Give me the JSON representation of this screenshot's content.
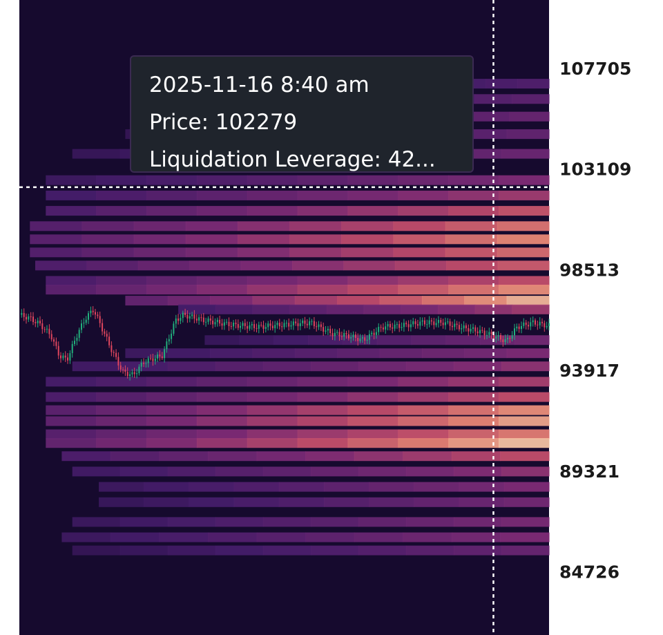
{
  "colors": {
    "background": "#160a2e",
    "page": "#ffffff",
    "candle_up": "#22b07d",
    "candle_down": "#e0465e",
    "crosshair": "#ffffff",
    "tooltip_bg": "#1f242c"
  },
  "tooltip": {
    "datetime": "2025-11-16 8:40 am",
    "price_line": "Price: 102279",
    "leverage_line": "Liquidation Leverage: 42..."
  },
  "chart_data": {
    "type": "heatmap",
    "title": "",
    "xlabel": "",
    "ylabel": "",
    "y_ticks": [
      107705,
      103109,
      98513,
      93917,
      89321,
      84726
    ],
    "y_tick_labels": [
      "107705",
      "103109",
      "98513",
      "93917",
      "89321",
      "84726"
    ],
    "ylim": [
      81840,
      110820
    ],
    "grid": false,
    "legend": "none",
    "crosshair": {
      "price": 102279,
      "time_fraction": 0.895
    },
    "price_path": [
      [
        0.0,
        96450
      ],
      [
        0.02,
        96300
      ],
      [
        0.04,
        96000
      ],
      [
        0.06,
        95500
      ],
      [
        0.075,
        94600
      ],
      [
        0.09,
        94400
      ],
      [
        0.11,
        95600
      ],
      [
        0.125,
        96300
      ],
      [
        0.14,
        96700
      ],
      [
        0.155,
        95900
      ],
      [
        0.175,
        94800
      ],
      [
        0.195,
        93850
      ],
      [
        0.215,
        93700
      ],
      [
        0.235,
        94300
      ],
      [
        0.27,
        94600
      ],
      [
        0.295,
        96200
      ],
      [
        0.31,
        96450
      ],
      [
        0.35,
        96200
      ],
      [
        0.4,
        96000
      ],
      [
        0.45,
        95900
      ],
      [
        0.5,
        96000
      ],
      [
        0.55,
        96100
      ],
      [
        0.59,
        95600
      ],
      [
        0.62,
        95500
      ],
      [
        0.65,
        95300
      ],
      [
        0.685,
        95900
      ],
      [
        0.72,
        95950
      ],
      [
        0.76,
        96100
      ],
      [
        0.8,
        96100
      ],
      [
        0.83,
        95900
      ],
      [
        0.86,
        95750
      ],
      [
        0.895,
        95500
      ],
      [
        0.92,
        95250
      ],
      [
        0.94,
        95900
      ],
      [
        0.97,
        96100
      ],
      [
        1.0,
        95950
      ]
    ],
    "liquidation_bands": [
      {
        "price": 107000,
        "intensity": 0.3,
        "start": 0.4
      },
      {
        "price": 106300,
        "intensity": 0.35,
        "start": 0.3
      },
      {
        "price": 105500,
        "intensity": 0.4,
        "start": 0.25
      },
      {
        "price": 104700,
        "intensity": 0.38,
        "start": 0.2
      },
      {
        "price": 103800,
        "intensity": 0.42,
        "start": 0.1
      },
      {
        "price": 102600,
        "intensity": 0.5,
        "start": 0.05
      },
      {
        "price": 101900,
        "intensity": 0.6,
        "start": 0.05
      },
      {
        "price": 101200,
        "intensity": 0.72,
        "start": 0.05
      },
      {
        "price": 100500,
        "intensity": 0.8,
        "start": 0.02
      },
      {
        "price": 99900,
        "intensity": 0.85,
        "start": 0.02
      },
      {
        "price": 99300,
        "intensity": 0.78,
        "start": 0.02
      },
      {
        "price": 98700,
        "intensity": 0.74,
        "start": 0.03
      },
      {
        "price": 98000,
        "intensity": 0.7,
        "start": 0.05
      },
      {
        "price": 97600,
        "intensity": 0.86,
        "start": 0.05
      },
      {
        "price": 97100,
        "intensity": 0.93,
        "start": 0.2
      },
      {
        "price": 96700,
        "intensity": 0.6,
        "start": 0.3
      },
      {
        "price": 95300,
        "intensity": 0.45,
        "start": 0.35
      },
      {
        "price": 94700,
        "intensity": 0.5,
        "start": 0.2
      },
      {
        "price": 94100,
        "intensity": 0.55,
        "start": 0.1
      },
      {
        "price": 93400,
        "intensity": 0.62,
        "start": 0.05
      },
      {
        "price": 92700,
        "intensity": 0.7,
        "start": 0.05
      },
      {
        "price": 92100,
        "intensity": 0.86,
        "start": 0.05
      },
      {
        "price": 91600,
        "intensity": 0.9,
        "start": 0.05
      },
      {
        "price": 91000,
        "intensity": 0.82,
        "start": 0.05
      },
      {
        "price": 90600,
        "intensity": 0.95,
        "start": 0.05
      },
      {
        "price": 90000,
        "intensity": 0.7,
        "start": 0.08
      },
      {
        "price": 89300,
        "intensity": 0.55,
        "start": 0.1
      },
      {
        "price": 88600,
        "intensity": 0.5,
        "start": 0.15
      },
      {
        "price": 87900,
        "intensity": 0.45,
        "start": 0.15
      },
      {
        "price": 87000,
        "intensity": 0.48,
        "start": 0.1
      },
      {
        "price": 86300,
        "intensity": 0.5,
        "start": 0.08
      },
      {
        "price": 85700,
        "intensity": 0.4,
        "start": 0.1
      }
    ]
  }
}
